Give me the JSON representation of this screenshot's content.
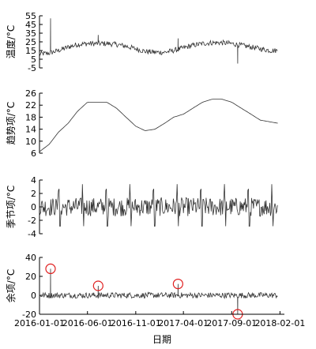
{
  "chart_data": {
    "type": "line",
    "x_axis": {
      "label": "日期",
      "start": "2016-01-01",
      "end": "2018-02-15",
      "ticks": [
        "2016-01-01",
        "2016-06-01",
        "2016-11-01",
        "2017-04-01",
        "2017-09-01",
        "2018-02-01"
      ]
    },
    "panels": [
      {
        "id": "temperature",
        "ylabel": "温度/°C",
        "ylim": [
          -5,
          55
        ],
        "yticks": [
          -5,
          5,
          15,
          25,
          35,
          45,
          55
        ],
        "line_points": [
          [
            "2016-01-01",
            11
          ],
          [
            "2016-02-01",
            12
          ],
          [
            "2016-03-01",
            15
          ],
          [
            "2016-04-01",
            19
          ],
          [
            "2016-05-01",
            22
          ],
          [
            "2016-06-01",
            23
          ],
          [
            "2016-07-01",
            23
          ],
          [
            "2016-08-01",
            23
          ],
          [
            "2016-09-01",
            22
          ],
          [
            "2016-10-01",
            20
          ],
          [
            "2016-11-01",
            17
          ],
          [
            "2016-12-01",
            14
          ],
          [
            "2017-01-01",
            13
          ],
          [
            "2017-02-01",
            13
          ],
          [
            "2017-03-01",
            15
          ],
          [
            "2017-04-01",
            18
          ],
          [
            "2017-05-01",
            21
          ],
          [
            "2017-06-01",
            23
          ],
          [
            "2017-07-01",
            24
          ],
          [
            "2017-08-01",
            24
          ],
          [
            "2017-09-01",
            23
          ],
          [
            "2017-10-01",
            21
          ],
          [
            "2017-11-01",
            19
          ],
          [
            "2017-12-01",
            17
          ],
          [
            "2018-01-01",
            15
          ],
          [
            "2018-01-25",
            15
          ]
        ],
        "spikes": [
          {
            "date": "2016-02-05",
            "value": 52
          },
          {
            "date": "2016-07-05",
            "value": 33
          },
          {
            "date": "2017-03-15",
            "value": 29
          },
          {
            "date": "2017-09-20",
            "value": 0
          }
        ],
        "noise_amplitude": 3
      },
      {
        "id": "trend",
        "ylabel": "趋势项/°C",
        "ylim": [
          6,
          26
        ],
        "yticks": [
          6,
          10,
          14,
          18,
          22,
          26
        ],
        "line_points": [
          [
            "2016-01-01",
            6.5
          ],
          [
            "2016-02-01",
            9
          ],
          [
            "2016-03-01",
            13
          ],
          [
            "2016-04-01",
            16
          ],
          [
            "2016-05-01",
            20
          ],
          [
            "2016-06-01",
            23
          ],
          [
            "2016-07-01",
            23
          ],
          [
            "2016-08-01",
            23
          ],
          [
            "2016-09-01",
            21
          ],
          [
            "2016-10-01",
            18
          ],
          [
            "2016-11-01",
            15
          ],
          [
            "2016-12-01",
            13.5
          ],
          [
            "2017-01-01",
            14
          ],
          [
            "2017-02-01",
            16
          ],
          [
            "2017-03-01",
            18
          ],
          [
            "2017-04-01",
            19
          ],
          [
            "2017-05-01",
            21
          ],
          [
            "2017-06-01",
            23
          ],
          [
            "2017-07-01",
            24
          ],
          [
            "2017-08-01",
            24
          ],
          [
            "2017-09-01",
            23
          ],
          [
            "2017-10-01",
            21
          ],
          [
            "2017-11-01",
            19
          ],
          [
            "2017-12-01",
            17
          ],
          [
            "2018-01-25",
            16
          ]
        ],
        "noise_amplitude": 0
      },
      {
        "id": "seasonal",
        "ylabel": "季节项/°C",
        "ylim": [
          -4,
          4
        ],
        "yticks": [
          -4,
          -2,
          0,
          2,
          4
        ],
        "periodic": {
          "period_days": 75,
          "peak_high": 3.5,
          "peak_low": -3.2,
          "mid_noise": 1.4
        }
      },
      {
        "id": "residual",
        "ylabel": "余项/°C",
        "ylim": [
          -20,
          40
        ],
        "yticks": [
          -20,
          0,
          20,
          40
        ],
        "noise_amplitude": 3,
        "spikes": [
          {
            "date": "2016-02-05",
            "value": 28
          },
          {
            "date": "2016-07-05",
            "value": 10
          },
          {
            "date": "2017-03-15",
            "value": 12
          },
          {
            "date": "2017-09-20",
            "value": -20
          }
        ],
        "outlier_circles": [
          {
            "date": "2016-02-05",
            "value": 28
          },
          {
            "date": "2016-07-05",
            "value": 10
          },
          {
            "date": "2017-03-15",
            "value": 12
          },
          {
            "date": "2017-09-20",
            "value": -20
          }
        ]
      }
    ],
    "colors": {
      "line": "#333333",
      "axis": "#000000",
      "circle": "#e02020"
    }
  }
}
